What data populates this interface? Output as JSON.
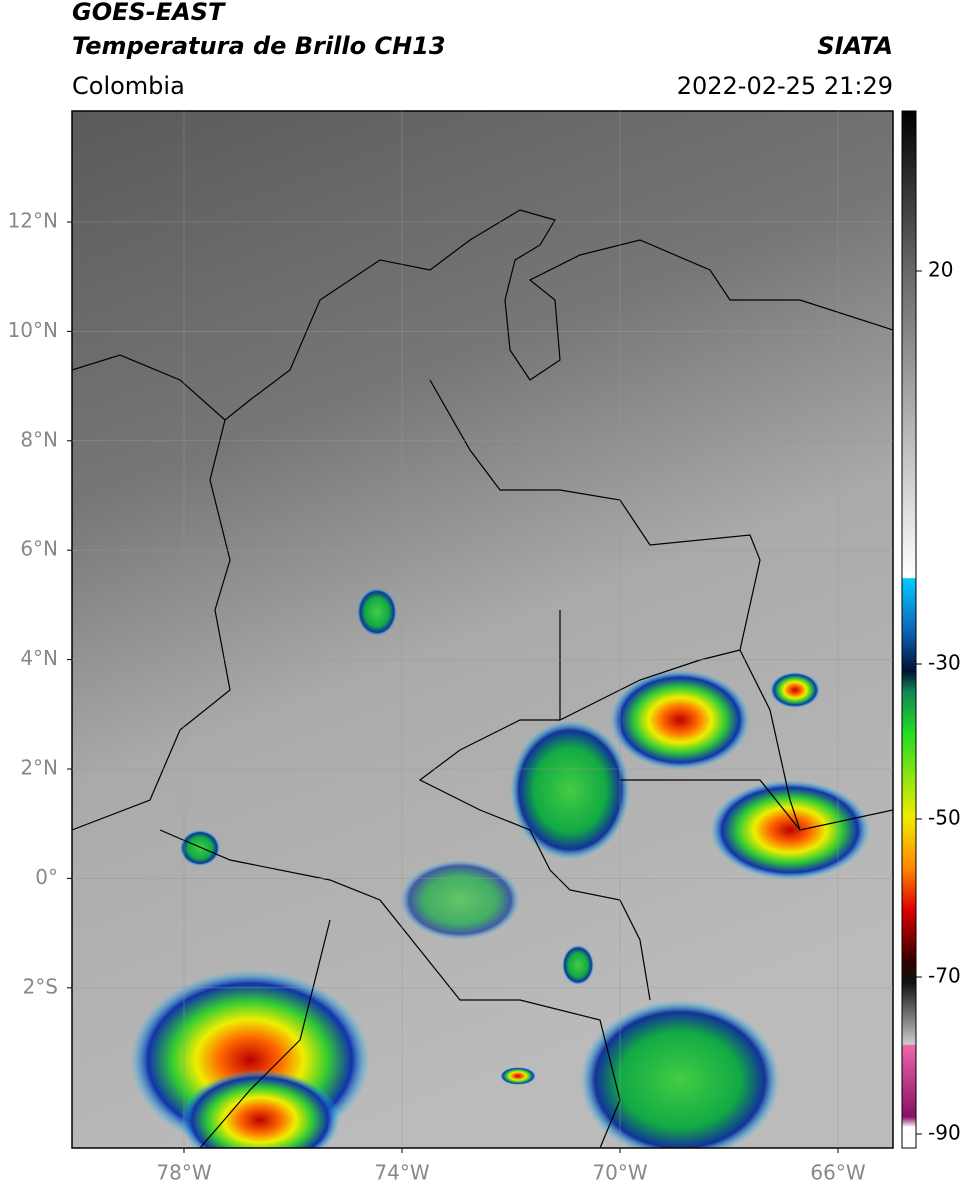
{
  "header": {
    "title": "GOES-EAST",
    "subtitle": "Temperatura de Brillo CH13",
    "region": "Colombia",
    "source": "SIATA",
    "datetime": "2022-02-25 21:29"
  },
  "map": {
    "lat_labels": [
      "12°N",
      "10°N",
      "8°N",
      "6°N",
      "4°N",
      "2°N",
      "0°",
      "2°S"
    ],
    "lon_labels": [
      "78°W",
      "74°W",
      "70°W",
      "66°W"
    ]
  },
  "colorbar": {
    "labels": [
      "20",
      "-30",
      "-50",
      "-70",
      "-90"
    ]
  }
}
